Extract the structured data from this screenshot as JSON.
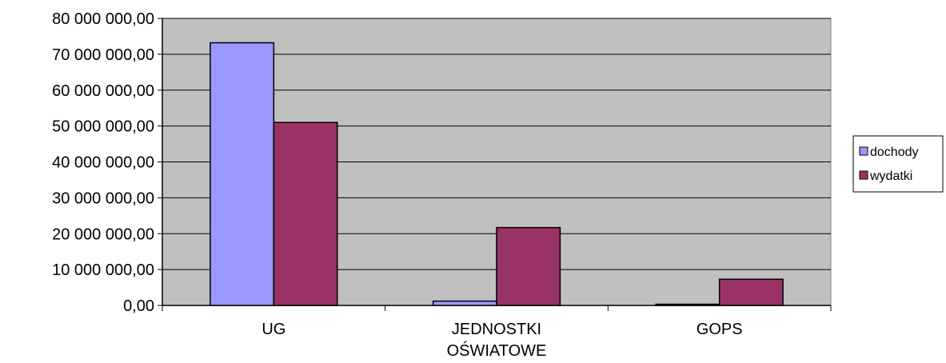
{
  "chart_data": {
    "type": "bar",
    "categories": [
      [
        "UG"
      ],
      [
        "JEDNOSTKI",
        "OŚWIATOWE"
      ],
      [
        "GOPS"
      ]
    ],
    "series": [
      {
        "name": "dochody",
        "color": "#9999ff",
        "values": [
          73200000,
          1200000,
          200000
        ]
      },
      {
        "name": "wydatki",
        "color": "#993366",
        "values": [
          51000000,
          21700000,
          7300000
        ]
      }
    ],
    "y_ticks": [
      {
        "value": 0,
        "label": "0,00"
      },
      {
        "value": 10000000,
        "label": "10 000 000,00"
      },
      {
        "value": 20000000,
        "label": "20 000 000,00"
      },
      {
        "value": 30000000,
        "label": "30 000 000,00"
      },
      {
        "value": 40000000,
        "label": "40 000 000,00"
      },
      {
        "value": 50000000,
        "label": "50 000 000,00"
      },
      {
        "value": 60000000,
        "label": "60 000 000,00"
      },
      {
        "value": 70000000,
        "label": "70 000 000,00"
      },
      {
        "value": 80000000,
        "label": "80 000 000,00"
      }
    ],
    "ylim": [
      0,
      80000000
    ],
    "grid": true,
    "plot_background": "#c0c0c0",
    "legend_position": "right",
    "title": "",
    "xlabel": "",
    "ylabel": ""
  }
}
